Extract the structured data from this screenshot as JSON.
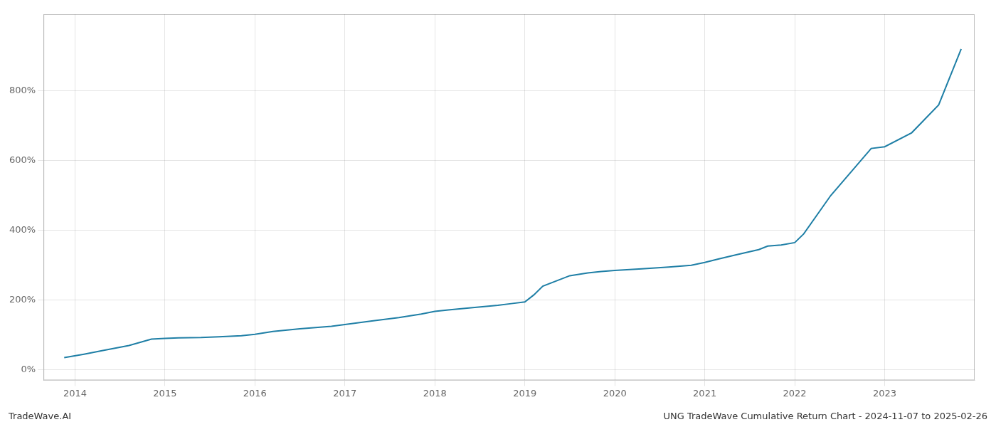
{
  "chart_data": {
    "type": "line",
    "annotations": [
      "TradeWave.AI",
      "UNG TradeWave Cumulative Return Chart - 2024-11-07 to 2025-02-26"
    ],
    "color": "#1f7fa6",
    "x": [
      2013.88,
      2014.1,
      2014.3,
      2014.6,
      2014.85,
      2015.0,
      2015.15,
      2015.4,
      2015.6,
      2015.85,
      2016.0,
      2016.2,
      2016.5,
      2016.85,
      2017.0,
      2017.3,
      2017.6,
      2017.85,
      2018.0,
      2018.15,
      2018.4,
      2018.7,
      2018.85,
      2019.0,
      2019.1,
      2019.2,
      2019.5,
      2019.7,
      2019.85,
      2020.0,
      2020.3,
      2020.6,
      2020.85,
      2021.0,
      2021.15,
      2021.35,
      2021.6,
      2021.7,
      2021.85,
      2022.0,
      2022.1,
      2022.4,
      2022.85,
      2023.0,
      2023.3,
      2023.6,
      2023.85
    ],
    "values": [
      35,
      45,
      55,
      70,
      88,
      90,
      92,
      93,
      95,
      98,
      102,
      110,
      118,
      125,
      130,
      140,
      150,
      160,
      168,
      172,
      178,
      185,
      190,
      195,
      215,
      240,
      270,
      278,
      282,
      285,
      290,
      295,
      300,
      308,
      318,
      330,
      345,
      355,
      358,
      365,
      390,
      500,
      635,
      640,
      680,
      760,
      920
    ],
    "xlim": [
      2013.65,
      2024.0
    ],
    "xticks": [
      2014,
      2015,
      2016,
      2017,
      2018,
      2019,
      2020,
      2021,
      2022,
      2023
    ],
    "ylim": [
      -30,
      1020
    ],
    "yticks": [
      {
        "value": 0,
        "label": "0%"
      },
      {
        "value": 200,
        "label": "200%"
      },
      {
        "value": 400,
        "label": "400%"
      },
      {
        "value": 600,
        "label": "600%"
      },
      {
        "value": 800,
        "label": "800%"
      }
    ],
    "grid": true
  }
}
